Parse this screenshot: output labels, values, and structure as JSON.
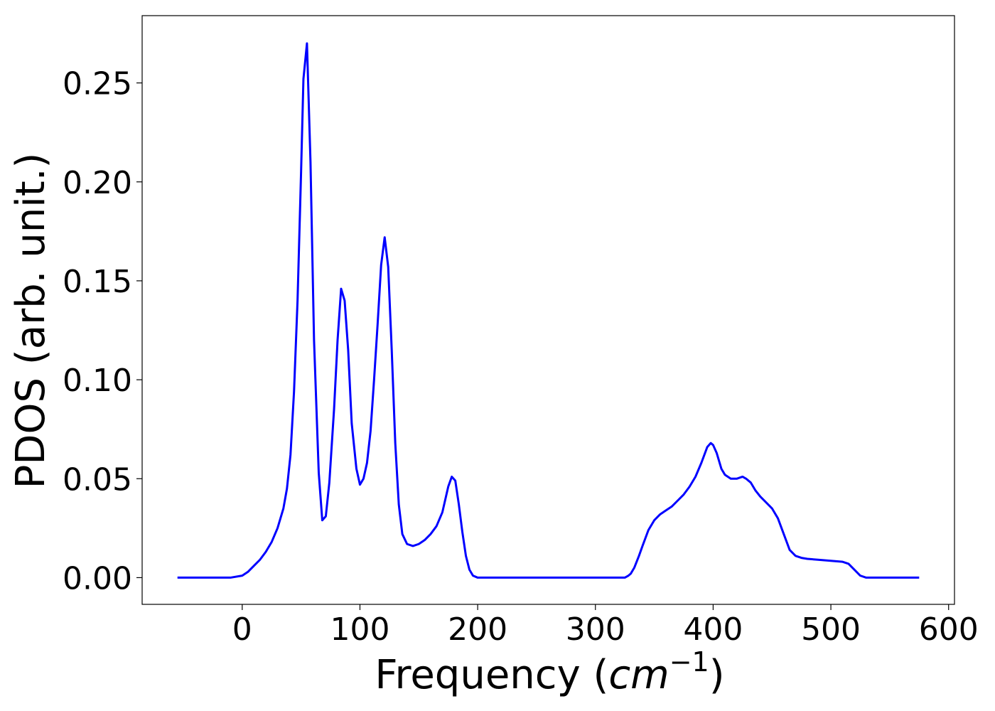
{
  "chart_data": {
    "type": "line",
    "title": "",
    "xlabel": {
      "text": "Frequency (",
      "unit": "cm",
      "exponent": "−1",
      "close": ")"
    },
    "ylabel": "PDOS (arb. unit.)",
    "xlim": [
      -85,
      605
    ],
    "ylim": [
      -0.0135,
      0.284
    ],
    "x_ticks": [
      0,
      100,
      200,
      300,
      400,
      500,
      600
    ],
    "x_tick_labels": [
      "0",
      "100",
      "200",
      "300",
      "400",
      "500",
      "600"
    ],
    "y_ticks": [
      0.0,
      0.05,
      0.1,
      0.15,
      0.2,
      0.25
    ],
    "y_tick_labels": [
      "0.00",
      "0.05",
      "0.10",
      "0.15",
      "0.20",
      "0.25"
    ],
    "grid": false,
    "line_color": "#0000ff",
    "series": [
      {
        "x": [
          -55,
          -10,
          0,
          5,
          10,
          15,
          20,
          25,
          30,
          35,
          38,
          41,
          44,
          47,
          50,
          52,
          55,
          58,
          61,
          65,
          68,
          71,
          74,
          78,
          81,
          84,
          87,
          90,
          93,
          97,
          100,
          103,
          106,
          109,
          112,
          115,
          118,
          121,
          124,
          127,
          130,
          133,
          136,
          140,
          145,
          150,
          155,
          160,
          165,
          170,
          175,
          178,
          181,
          184,
          187,
          190,
          193,
          196,
          200,
          210,
          250,
          300,
          320,
          325,
          328,
          330,
          333,
          337,
          340,
          345,
          350,
          355,
          360,
          365,
          370,
          375,
          380,
          385,
          390,
          395,
          398,
          400,
          403,
          407,
          410,
          415,
          420,
          425,
          428,
          432,
          436,
          440,
          445,
          450,
          455,
          460,
          465,
          470,
          475,
          480,
          490,
          500,
          510,
          515,
          520,
          525,
          530,
          535,
          550,
          575
        ],
        "y": [
          0.0,
          0.0,
          0.001,
          0.003,
          0.006,
          0.009,
          0.013,
          0.018,
          0.025,
          0.035,
          0.045,
          0.062,
          0.094,
          0.14,
          0.205,
          0.252,
          0.27,
          0.21,
          0.12,
          0.053,
          0.029,
          0.031,
          0.048,
          0.085,
          0.12,
          0.146,
          0.14,
          0.115,
          0.078,
          0.055,
          0.047,
          0.05,
          0.058,
          0.074,
          0.1,
          0.128,
          0.158,
          0.172,
          0.157,
          0.115,
          0.068,
          0.037,
          0.022,
          0.017,
          0.016,
          0.017,
          0.019,
          0.022,
          0.026,
          0.033,
          0.046,
          0.051,
          0.049,
          0.037,
          0.023,
          0.011,
          0.004,
          0.001,
          0.0,
          0.0,
          0.0,
          0.0,
          0.0,
          0.0,
          0.001,
          0.002,
          0.005,
          0.011,
          0.016,
          0.024,
          0.029,
          0.032,
          0.034,
          0.036,
          0.039,
          0.042,
          0.046,
          0.051,
          0.058,
          0.066,
          0.068,
          0.067,
          0.063,
          0.055,
          0.052,
          0.05,
          0.05,
          0.051,
          0.05,
          0.048,
          0.044,
          0.041,
          0.038,
          0.035,
          0.03,
          0.022,
          0.014,
          0.011,
          0.01,
          0.0095,
          0.009,
          0.0085,
          0.008,
          0.007,
          0.004,
          0.001,
          0.0,
          0.0,
          0.0,
          0.0
        ]
      }
    ]
  }
}
